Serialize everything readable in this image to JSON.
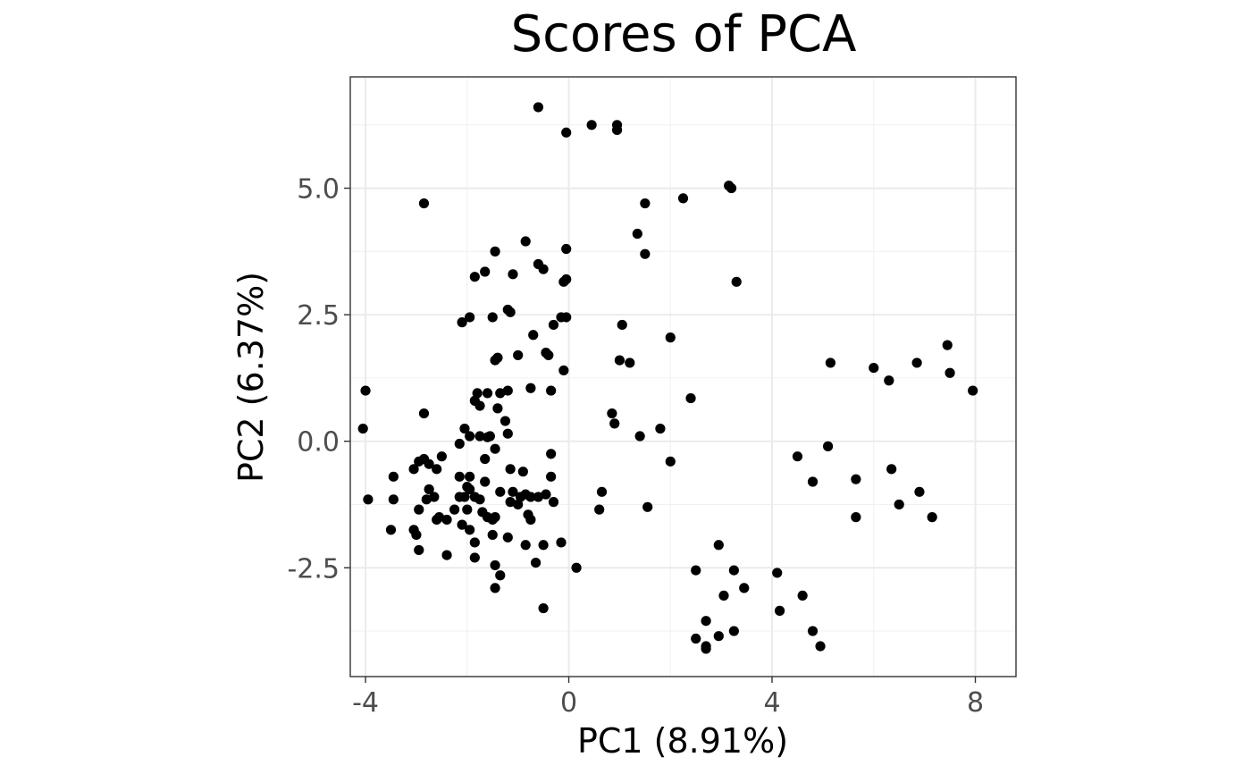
{
  "chart_data": {
    "type": "scatter",
    "title": "Scores of PCA",
    "xlabel": "PC1 (8.91%)",
    "ylabel": "PC2 (6.37%)",
    "xlim": [
      -4.3,
      8.8
    ],
    "ylim": [
      -4.65,
      7.2
    ],
    "x_ticks": [
      -4,
      0,
      4,
      8
    ],
    "x_tick_labels": [
      "-4",
      "0",
      "4",
      "8"
    ],
    "y_ticks": [
      -2.5,
      0.0,
      2.5,
      5.0
    ],
    "y_tick_labels": [
      "-2.5",
      "0.0",
      "2.5",
      "5.0"
    ],
    "grid": true,
    "legend": "none",
    "point_color": "#000000",
    "points": [
      [
        -0.6,
        6.6
      ],
      [
        -0.05,
        6.1
      ],
      [
        0.45,
        6.25
      ],
      [
        0.95,
        6.25
      ],
      [
        0.95,
        6.15
      ],
      [
        -2.85,
        4.7
      ],
      [
        2.25,
        4.8
      ],
      [
        3.15,
        5.05
      ],
      [
        3.2,
        5.0
      ],
      [
        1.5,
        4.7
      ],
      [
        1.35,
        4.1
      ],
      [
        1.5,
        3.7
      ],
      [
        3.3,
        3.15
      ],
      [
        -0.05,
        3.8
      ],
      [
        -0.85,
        3.95
      ],
      [
        -1.45,
        3.75
      ],
      [
        -1.65,
        3.35
      ],
      [
        -1.85,
        3.25
      ],
      [
        -1.1,
        3.3
      ],
      [
        -0.6,
        3.5
      ],
      [
        -0.5,
        3.4
      ],
      [
        -0.1,
        3.15
      ],
      [
        -0.05,
        3.2
      ],
      [
        -1.15,
        2.55
      ],
      [
        -1.2,
        2.6
      ],
      [
        -1.5,
        2.45
      ],
      [
        -1.95,
        2.45
      ],
      [
        -2.1,
        2.35
      ],
      [
        -0.3,
        2.3
      ],
      [
        -0.15,
        2.45
      ],
      [
        -0.05,
        2.45
      ],
      [
        -0.7,
        2.1
      ],
      [
        1.05,
        2.3
      ],
      [
        2.0,
        2.05
      ],
      [
        -1.0,
        1.7
      ],
      [
        -1.45,
        1.6
      ],
      [
        -1.4,
        1.65
      ],
      [
        -0.45,
        1.75
      ],
      [
        -0.4,
        1.7
      ],
      [
        1.0,
        1.6
      ],
      [
        1.2,
        1.55
      ],
      [
        -0.1,
        1.4
      ],
      [
        -4.0,
        1.0
      ],
      [
        -1.8,
        0.95
      ],
      [
        -1.6,
        0.95
      ],
      [
        -1.35,
        0.95
      ],
      [
        -1.2,
        1.0
      ],
      [
        -0.75,
        1.05
      ],
      [
        -0.35,
        1.0
      ],
      [
        2.4,
        0.85
      ],
      [
        -1.85,
        0.8
      ],
      [
        -1.75,
        0.7
      ],
      [
        -1.4,
        0.65
      ],
      [
        0.85,
        0.55
      ],
      [
        -2.85,
        0.55
      ],
      [
        -1.25,
        0.4
      ],
      [
        0.9,
        0.35
      ],
      [
        -4.05,
        0.25
      ],
      [
        -2.05,
        0.25
      ],
      [
        -1.95,
        0.1
      ],
      [
        -1.75,
        0.1
      ],
      [
        -1.6,
        0.08
      ],
      [
        -1.55,
        0.1
      ],
      [
        -1.2,
        0.15
      ],
      [
        -1.45,
        -0.15
      ],
      [
        1.8,
        0.25
      ],
      [
        1.4,
        0.1
      ],
      [
        -2.15,
        -0.05
      ],
      [
        -0.35,
        -0.25
      ],
      [
        -1.65,
        -0.35
      ],
      [
        2.0,
        -0.4
      ],
      [
        -2.95,
        -0.4
      ],
      [
        -2.85,
        -0.35
      ],
      [
        -2.75,
        -0.45
      ],
      [
        -2.5,
        -0.3
      ],
      [
        -2.6,
        -0.55
      ],
      [
        -3.05,
        -0.55
      ],
      [
        -3.45,
        -0.7
      ],
      [
        -1.95,
        -0.7
      ],
      [
        -2.15,
        -0.7
      ],
      [
        -1.65,
        -0.8
      ],
      [
        -1.15,
        -0.55
      ],
      [
        -0.9,
        -0.6
      ],
      [
        -0.35,
        -0.7
      ],
      [
        -2.75,
        -0.95
      ],
      [
        -2.0,
        -0.9
      ],
      [
        -1.95,
        -0.95
      ],
      [
        -0.95,
        -1.1
      ],
      [
        -0.85,
        -1.05
      ],
      [
        -0.75,
        -1.1
      ],
      [
        -0.6,
        -1.1
      ],
      [
        -0.45,
        -1.05
      ],
      [
        -0.3,
        -1.2
      ],
      [
        -1.1,
        -1.0
      ],
      [
        -1.35,
        -1.0
      ],
      [
        -2.15,
        -1.1
      ],
      [
        -2.05,
        -1.1
      ],
      [
        -1.85,
        -1.1
      ],
      [
        -1.75,
        -1.15
      ],
      [
        -2.8,
        -1.15
      ],
      [
        -2.65,
        -1.1
      ],
      [
        -3.45,
        -1.15
      ],
      [
        -3.95,
        -1.15
      ],
      [
        -1.15,
        -1.2
      ],
      [
        -1.0,
        -1.25
      ],
      [
        -2.95,
        -1.35
      ],
      [
        -2.25,
        -1.35
      ],
      [
        -2.0,
        -1.35
      ],
      [
        0.65,
        -1.0
      ],
      [
        0.6,
        -1.35
      ],
      [
        1.55,
        -1.3
      ],
      [
        -1.7,
        -1.4
      ],
      [
        -1.6,
        -1.5
      ],
      [
        -1.45,
        -1.5
      ],
      [
        -2.55,
        -1.5
      ],
      [
        -2.4,
        -1.55
      ],
      [
        -2.6,
        -1.55
      ],
      [
        -0.8,
        -1.45
      ],
      [
        -0.75,
        -1.55
      ],
      [
        -1.5,
        -1.55
      ],
      [
        -2.1,
        -1.65
      ],
      [
        -1.95,
        -1.75
      ],
      [
        -3.5,
        -1.75
      ],
      [
        -3.05,
        -1.75
      ],
      [
        -3.0,
        -1.85
      ],
      [
        -1.5,
        -1.85
      ],
      [
        -1.2,
        -1.9
      ],
      [
        -1.85,
        -2.0
      ],
      [
        -0.85,
        -2.05
      ],
      [
        -0.5,
        -2.05
      ],
      [
        -0.15,
        -2.0
      ],
      [
        -2.95,
        -2.15
      ],
      [
        -2.4,
        -2.25
      ],
      [
        -1.85,
        -2.3
      ],
      [
        -0.65,
        -2.4
      ],
      [
        -1.45,
        -2.45
      ],
      [
        -1.35,
        -2.65
      ],
      [
        0.15,
        -2.5
      ],
      [
        -1.45,
        -2.9
      ],
      [
        -0.5,
        -3.3
      ],
      [
        2.95,
        -2.05
      ],
      [
        2.5,
        -2.55
      ],
      [
        3.25,
        -2.55
      ],
      [
        3.05,
        -3.05
      ],
      [
        3.45,
        -2.9
      ],
      [
        4.1,
        -2.6
      ],
      [
        4.6,
        -3.05
      ],
      [
        4.15,
        -3.35
      ],
      [
        2.7,
        -3.55
      ],
      [
        2.5,
        -3.9
      ],
      [
        2.95,
        -3.85
      ],
      [
        3.25,
        -3.75
      ],
      [
        2.7,
        -4.05
      ],
      [
        2.7,
        -4.1
      ],
      [
        4.8,
        -3.75
      ],
      [
        4.95,
        -4.05
      ],
      [
        4.5,
        -0.3
      ],
      [
        4.8,
        -0.8
      ],
      [
        5.1,
        -0.1
      ],
      [
        5.65,
        -0.75
      ],
      [
        5.65,
        -1.5
      ],
      [
        6.35,
        -0.55
      ],
      [
        6.5,
        -1.25
      ],
      [
        6.9,
        -1.0
      ],
      [
        7.15,
        -1.5
      ],
      [
        5.15,
        1.55
      ],
      [
        6.0,
        1.45
      ],
      [
        6.3,
        1.2
      ],
      [
        6.85,
        1.55
      ],
      [
        7.45,
        1.9
      ],
      [
        7.5,
        1.35
      ],
      [
        7.95,
        1.0
      ]
    ]
  }
}
